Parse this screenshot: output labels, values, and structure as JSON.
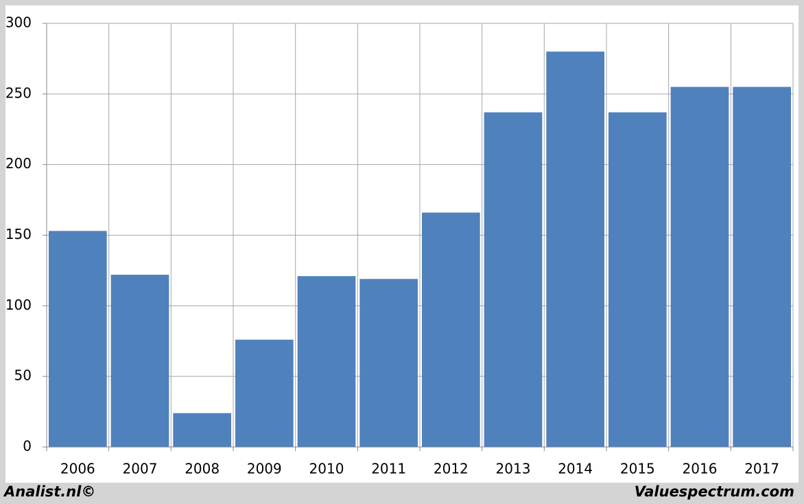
{
  "chart_data": {
    "type": "bar",
    "categories": [
      "2006",
      "2007",
      "2008",
      "2009",
      "2010",
      "2011",
      "2012",
      "2013",
      "2014",
      "2015",
      "2016",
      "2017"
    ],
    "values": [
      153,
      122,
      24,
      76,
      121,
      119,
      166,
      237,
      280,
      237,
      255,
      255
    ],
    "color": "#4f81bd",
    "ylim": [
      0,
      300
    ],
    "yticks": [
      0,
      50,
      100,
      150,
      200,
      250,
      300
    ],
    "grid": true
  },
  "footer": {
    "left": "Analist.nl©",
    "right": "Valuespectrum.com"
  }
}
